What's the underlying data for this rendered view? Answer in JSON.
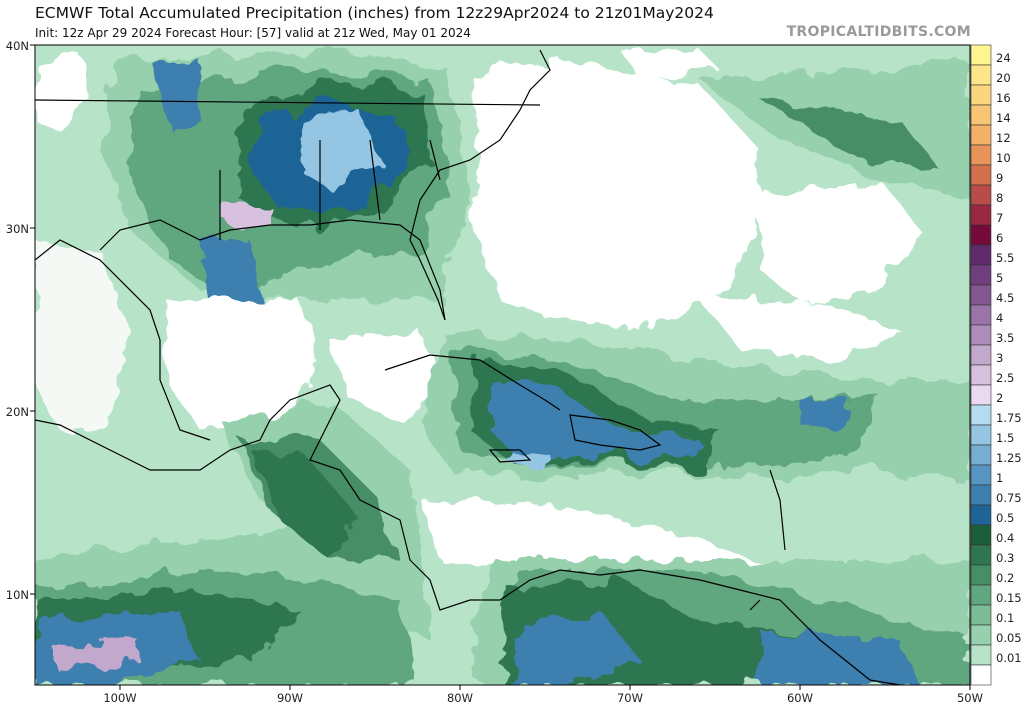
{
  "header": {
    "title": "ECMWF Total Accumulated Precipitation (inches) from 12z29Apr2024 to 21z01May2024",
    "subtitle": "Init: 12z Apr 29 2024   Forecast Hour: [57]   valid at 21z Wed, May 01 2024",
    "watermark": "TROPICALTIDBITS.COM"
  },
  "map": {
    "lat_labels": [
      "40N",
      "30N",
      "20N",
      "10N"
    ],
    "lon_labels": [
      "100W",
      "90W",
      "80W",
      "70W",
      "60W",
      "50W"
    ]
  },
  "colorbar": {
    "labels": [
      "24",
      "20",
      "16",
      "14",
      "12",
      "10",
      "9",
      "8",
      "7",
      "6",
      "5.5",
      "5",
      "4.5",
      "4",
      "3.5",
      "3",
      "2.5",
      "2",
      "1.75",
      "1.5",
      "1.25",
      "1",
      "0.75",
      "0.5",
      "0.4",
      "0.3",
      "0.2",
      "0.15",
      "0.1",
      "0.05",
      "0.01"
    ],
    "colors": [
      "#fef490",
      "#fde68a",
      "#fbd680",
      "#f8c575",
      "#f3b067",
      "#e8935a",
      "#d3714f",
      "#b84c48",
      "#9a2840",
      "#740a3a",
      "#5f2b6b",
      "#6f3f7d",
      "#835790",
      "#9a74a8",
      "#ae8dbb",
      "#c3a8cd",
      "#d8c1de",
      "#eadaf0",
      "#b4dbf0",
      "#94c5e3",
      "#76add2",
      "#5894c1",
      "#3e7fae",
      "#1f6496",
      "#1c5e3c",
      "#2f7650",
      "#468e66",
      "#60a67e",
      "#7bbb95",
      "#97d0ac",
      "#b7e4c9",
      "#ffffff"
    ]
  }
}
